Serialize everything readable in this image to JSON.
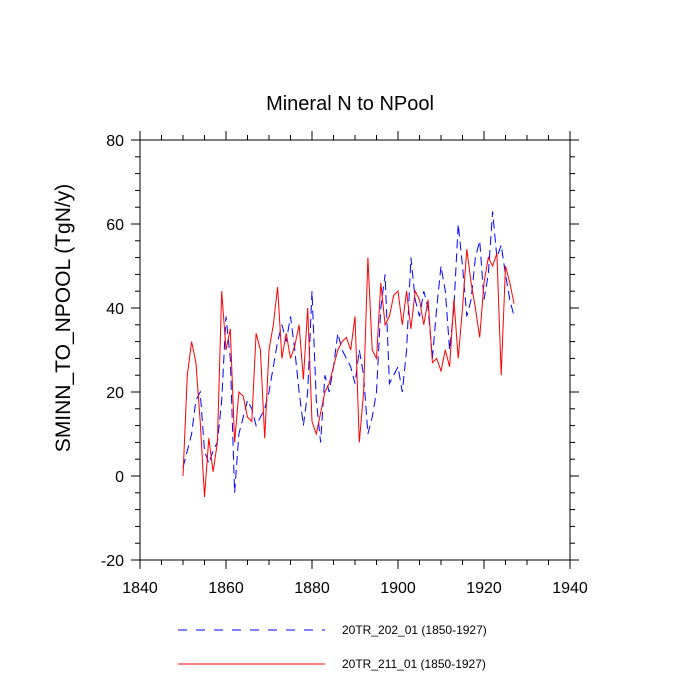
{
  "chart_data": {
    "type": "line",
    "title": "Mineral N to NPool",
    "xlabel": "",
    "ylabel": "SMINN_TO_NPOOL  (TgN/y)",
    "xlim": [
      1840,
      1940
    ],
    "ylim": [
      -20,
      80
    ],
    "x_ticks": [
      1840,
      1860,
      1880,
      1900,
      1920,
      1940
    ],
    "y_ticks": [
      -20,
      0,
      20,
      40,
      60,
      80
    ],
    "x_tick_labels": [
      "1840",
      "1860",
      "1880",
      "1900",
      "1920",
      "1940"
    ],
    "y_tick_labels": [
      "-20",
      "0",
      "20",
      "40",
      "60",
      "80"
    ],
    "x": [
      1850,
      1851,
      1852,
      1853,
      1854,
      1855,
      1856,
      1857,
      1858,
      1859,
      1860,
      1861,
      1862,
      1863,
      1864,
      1865,
      1866,
      1867,
      1868,
      1869,
      1870,
      1871,
      1872,
      1873,
      1874,
      1875,
      1876,
      1877,
      1878,
      1879,
      1880,
      1881,
      1882,
      1883,
      1884,
      1885,
      1886,
      1887,
      1888,
      1889,
      1890,
      1891,
      1892,
      1893,
      1894,
      1895,
      1896,
      1897,
      1898,
      1899,
      1900,
      1901,
      1902,
      1903,
      1904,
      1905,
      1906,
      1907,
      1908,
      1909,
      1910,
      1911,
      1912,
      1913,
      1914,
      1915,
      1916,
      1917,
      1918,
      1919,
      1920,
      1921,
      1922,
      1923,
      1924,
      1925,
      1926,
      1927
    ],
    "series": [
      {
        "name": "20TR_202_01 (1850-1927)",
        "color": "#0000ff",
        "style": "dashed",
        "values": [
          2,
          6,
          10,
          18,
          20,
          6,
          3,
          6,
          8,
          18,
          38,
          28,
          -4,
          10,
          14,
          18,
          16,
          12,
          14,
          16,
          20,
          26,
          32,
          36,
          32,
          38,
          30,
          20,
          12,
          20,
          44,
          18,
          8,
          24,
          20,
          26,
          34,
          30,
          28,
          26,
          22,
          30,
          24,
          10,
          14,
          20,
          40,
          48,
          22,
          24,
          26,
          20,
          30,
          52,
          42,
          38,
          44,
          40,
          28,
          40,
          50,
          44,
          30,
          40,
          60,
          50,
          38,
          42,
          52,
          56,
          42,
          48,
          63,
          52,
          55,
          48,
          42,
          38
        ],
        "name_label": "20TR_202_01 (1850-1927)"
      },
      {
        "name": "20TR_211_01 (1850-1927)",
        "color": "#ff0000",
        "style": "solid",
        "values": [
          0,
          24,
          32,
          27,
          13,
          -5,
          9,
          1,
          8,
          44,
          30,
          35,
          8,
          20,
          19,
          14,
          13,
          34,
          30,
          9,
          30,
          36,
          45,
          28,
          34,
          28,
          31,
          36,
          23,
          40,
          13,
          10,
          15,
          20,
          22,
          26,
          30,
          32,
          33,
          30,
          38,
          8,
          20,
          52,
          30,
          28,
          46,
          36,
          38,
          43,
          44,
          36,
          44,
          35,
          44,
          42,
          36,
          42,
          27,
          28,
          25,
          30,
          26,
          42,
          28,
          40,
          54,
          46,
          40,
          33,
          46,
          52,
          50,
          53,
          24,
          50,
          46,
          41
        ],
        "name_label": "20TR_211_01 (1850-1927)"
      }
    ],
    "legend": {
      "position": "bottom",
      "entries": [
        "20TR_202_01 (1850-1927)",
        "20TR_211_01 (1850-1927)"
      ]
    },
    "grid": false
  }
}
